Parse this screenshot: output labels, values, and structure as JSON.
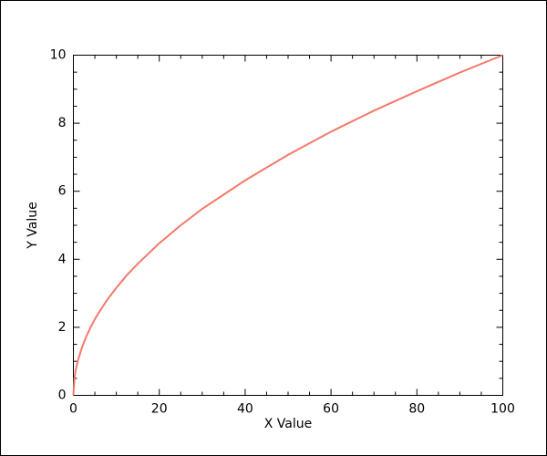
{
  "chart_data": {
    "type": "line",
    "x_label": "X Value",
    "y_label": "Y Value",
    "x": [
      0,
      0.25,
      0.5,
      1,
      2,
      3,
      4,
      5,
      6,
      8,
      10,
      12.5,
      15,
      20,
      25,
      30,
      40,
      50,
      60,
      70,
      80,
      90,
      100
    ],
    "series": [
      {
        "color": "#f4796b",
        "values": [
          0,
          0.5,
          0.71,
          1,
          1.41,
          1.73,
          2,
          2.24,
          2.45,
          2.83,
          3.16,
          3.54,
          3.87,
          4.47,
          5,
          5.48,
          6.32,
          7.07,
          7.75,
          8.37,
          8.94,
          9.49,
          10
        ]
      }
    ],
    "xlim": [
      0,
      100
    ],
    "xticks": [
      0,
      20,
      40,
      60,
      80,
      100
    ],
    "x_minor_ticks": [
      5,
      10,
      15,
      25,
      30,
      35,
      45,
      50,
      55,
      65,
      70,
      75,
      85,
      90,
      95
    ],
    "ylim": [
      0,
      10
    ],
    "yticks": [
      0,
      2,
      4,
      6,
      8,
      10
    ],
    "y_minor_ticks": [
      0.5,
      1,
      1.5,
      2.5,
      3,
      3.5,
      4.5,
      5,
      5.5,
      6.5,
      7,
      7.5,
      8.5,
      9,
      9.5
    ],
    "grid": false
  }
}
